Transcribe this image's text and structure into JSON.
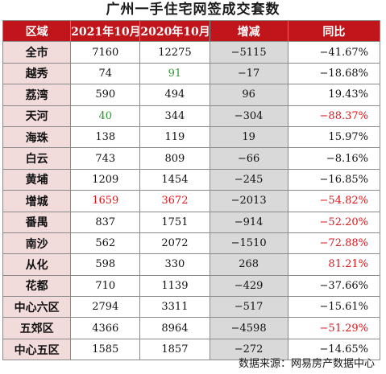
{
  "title": "广州一手住宅网签成交套数",
  "columns": [
    "区域",
    "2021年10月",
    "2020年10月",
    "增减",
    "同比"
  ],
  "colors": {
    "header_bg": "#c0161b",
    "region_bg": "#f2dcdb",
    "diff_bg": "#d9d9d9",
    "green": "#2e9a2e",
    "red": "#e0161b"
  },
  "rows": [
    {
      "region": "全市",
      "y2021": "7160",
      "y2020": "12275",
      "diff": "−5115",
      "pct": "−41.67%"
    },
    {
      "region": "越秀",
      "y2021": "74",
      "y2020": "91",
      "diff": "−17",
      "pct": "−18.68%",
      "y2020_color": "green"
    },
    {
      "region": "荔湾",
      "y2021": "590",
      "y2020": "494",
      "diff": "96",
      "pct": "19.43%"
    },
    {
      "region": "天河",
      "y2021": "40",
      "y2020": "344",
      "diff": "−304",
      "pct": "−88.37%",
      "y2021_color": "green",
      "pct_color": "red"
    },
    {
      "region": "海珠",
      "y2021": "138",
      "y2020": "119",
      "diff": "19",
      "pct": "15.97%"
    },
    {
      "region": "白云",
      "y2021": "743",
      "y2020": "809",
      "diff": "−66",
      "pct": "−8.16%"
    },
    {
      "region": "黄埔",
      "y2021": "1209",
      "y2020": "1454",
      "diff": "−245",
      "pct": "−16.85%"
    },
    {
      "region": "增城",
      "y2021": "1659",
      "y2020": "3672",
      "diff": "−2013",
      "pct": "−54.82%",
      "y2021_color": "red",
      "y2020_color": "red",
      "pct_color": "red"
    },
    {
      "region": "番禺",
      "y2021": "837",
      "y2020": "1751",
      "diff": "−914",
      "pct": "−52.20%",
      "pct_color": "red"
    },
    {
      "region": "南沙",
      "y2021": "562",
      "y2020": "2072",
      "diff": "−1510",
      "pct": "−72.88%",
      "pct_color": "red"
    },
    {
      "region": "从化",
      "y2021": "598",
      "y2020": "330",
      "diff": "268",
      "pct": "81.21%",
      "pct_color": "red"
    },
    {
      "region": "花都",
      "y2021": "710",
      "y2020": "1139",
      "diff": "−429",
      "pct": "−37.66%"
    },
    {
      "region": "中心六区",
      "y2021": "2794",
      "y2020": "3311",
      "diff": "−517",
      "pct": "−15.61%"
    },
    {
      "region": "五郊区",
      "y2021": "4366",
      "y2020": "8964",
      "diff": "−4598",
      "pct": "−51.29%",
      "pct_color": "red"
    },
    {
      "region": "中心五区",
      "y2021": "1585",
      "y2020": "1857",
      "diff": "−272",
      "pct": "−14.65%"
    }
  ],
  "source": "数据来源：网易房产数据中心"
}
